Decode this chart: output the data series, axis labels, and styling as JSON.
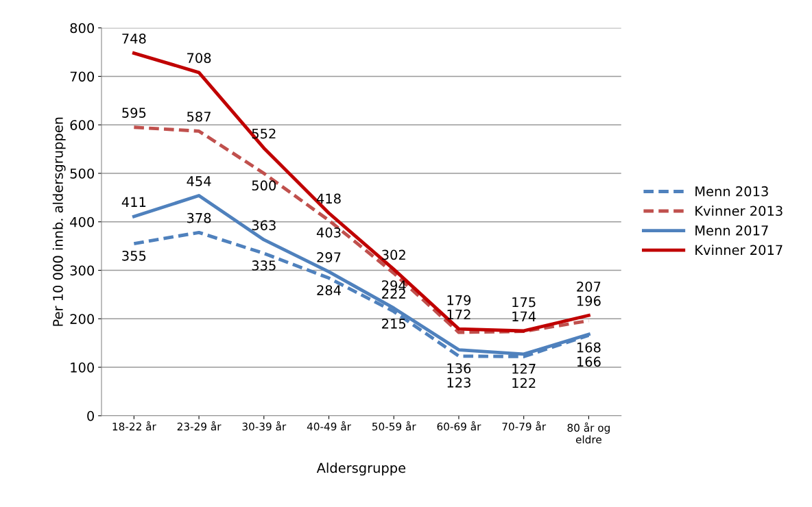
{
  "chart_data": {
    "type": "line",
    "xlabel": "Aldersgruppe",
    "ylabel": "Per 10 000 innb. aldersgruppen",
    "categories": [
      "18-22 år",
      "23-29 år",
      "30-39 år",
      "40-49 år",
      "50-59 år",
      "60-69 år",
      "70-79 år",
      "80 år og\neldre"
    ],
    "ylim": [
      0,
      800
    ],
    "yticks": [
      0,
      100,
      200,
      300,
      400,
      500,
      600,
      700,
      800
    ],
    "grid": "y",
    "legend": "right",
    "data_labels": true,
    "marker": "none",
    "series": [
      {
        "name": "Menn 2013",
        "color": "#4f81bd",
        "line_style": "dashed",
        "values": [
          355,
          378,
          335,
          284,
          215,
          123,
          122,
          166
        ]
      },
      {
        "name": "Kvinner 2013",
        "color": "#c0504d",
        "line_style": "dashed",
        "values": [
          595,
          587,
          500,
          403,
          294,
          172,
          174,
          196
        ]
      },
      {
        "name": "Menn 2017",
        "color": "#4f81bd",
        "line_style": "solid",
        "values": [
          411,
          454,
          363,
          297,
          222,
          136,
          127,
          168
        ]
      },
      {
        "name": "Kvinner 2017",
        "color": "#c00000",
        "line_style": "solid",
        "values": [
          748,
          708,
          552,
          418,
          302,
          179,
          175,
          207
        ]
      }
    ]
  }
}
